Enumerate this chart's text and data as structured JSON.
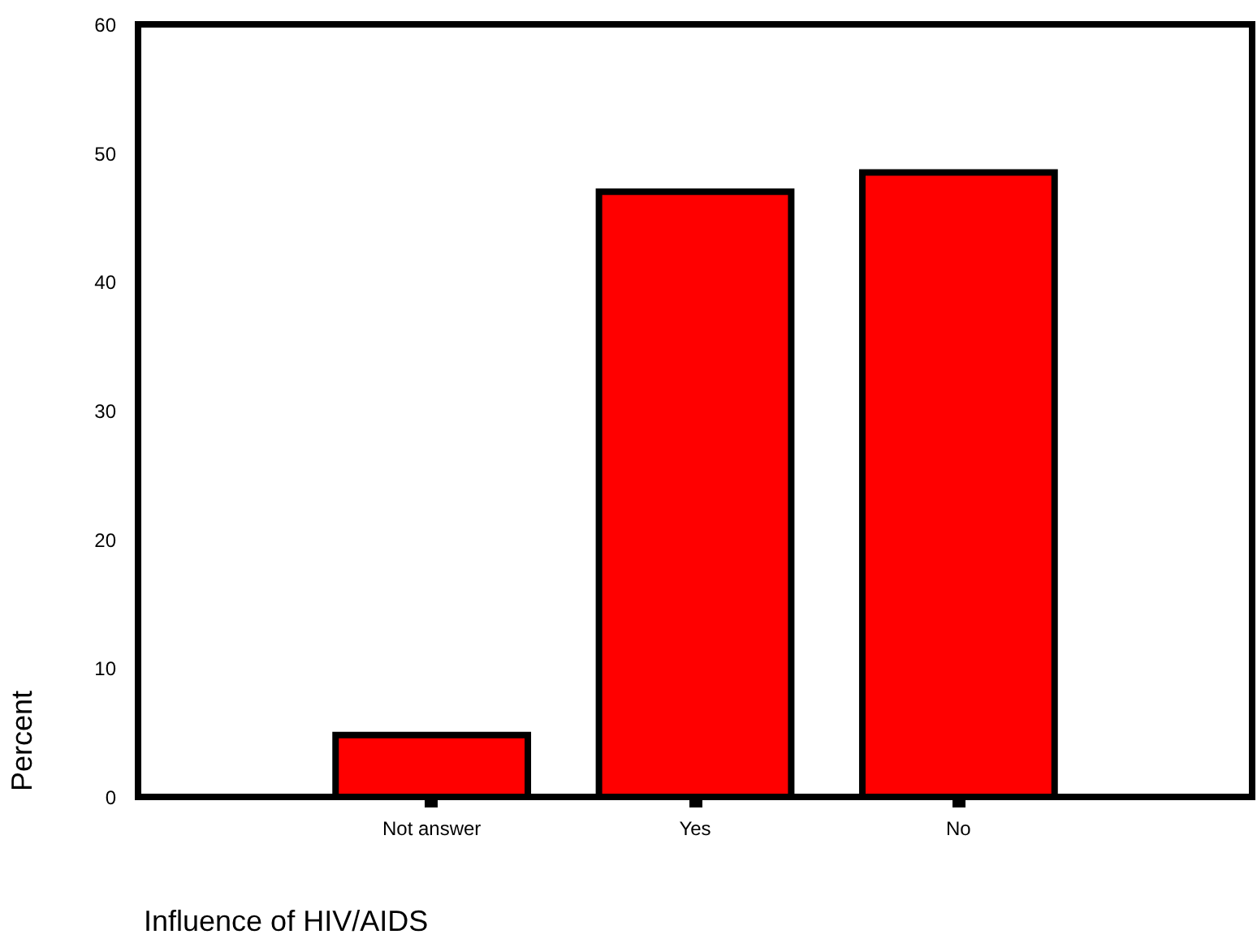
{
  "chart_data": {
    "type": "bar",
    "xlabel": "Influence of HIV/AIDS",
    "ylabel": "Percent",
    "categories": [
      "Not answer",
      "Yes",
      "No"
    ],
    "values": [
      4.8,
      47.0,
      48.5
    ],
    "color": "#ff0000",
    "ylim": [
      0,
      60
    ],
    "yticks": [
      0,
      10,
      20,
      30,
      40,
      50,
      60
    ],
    "grid": false
  }
}
